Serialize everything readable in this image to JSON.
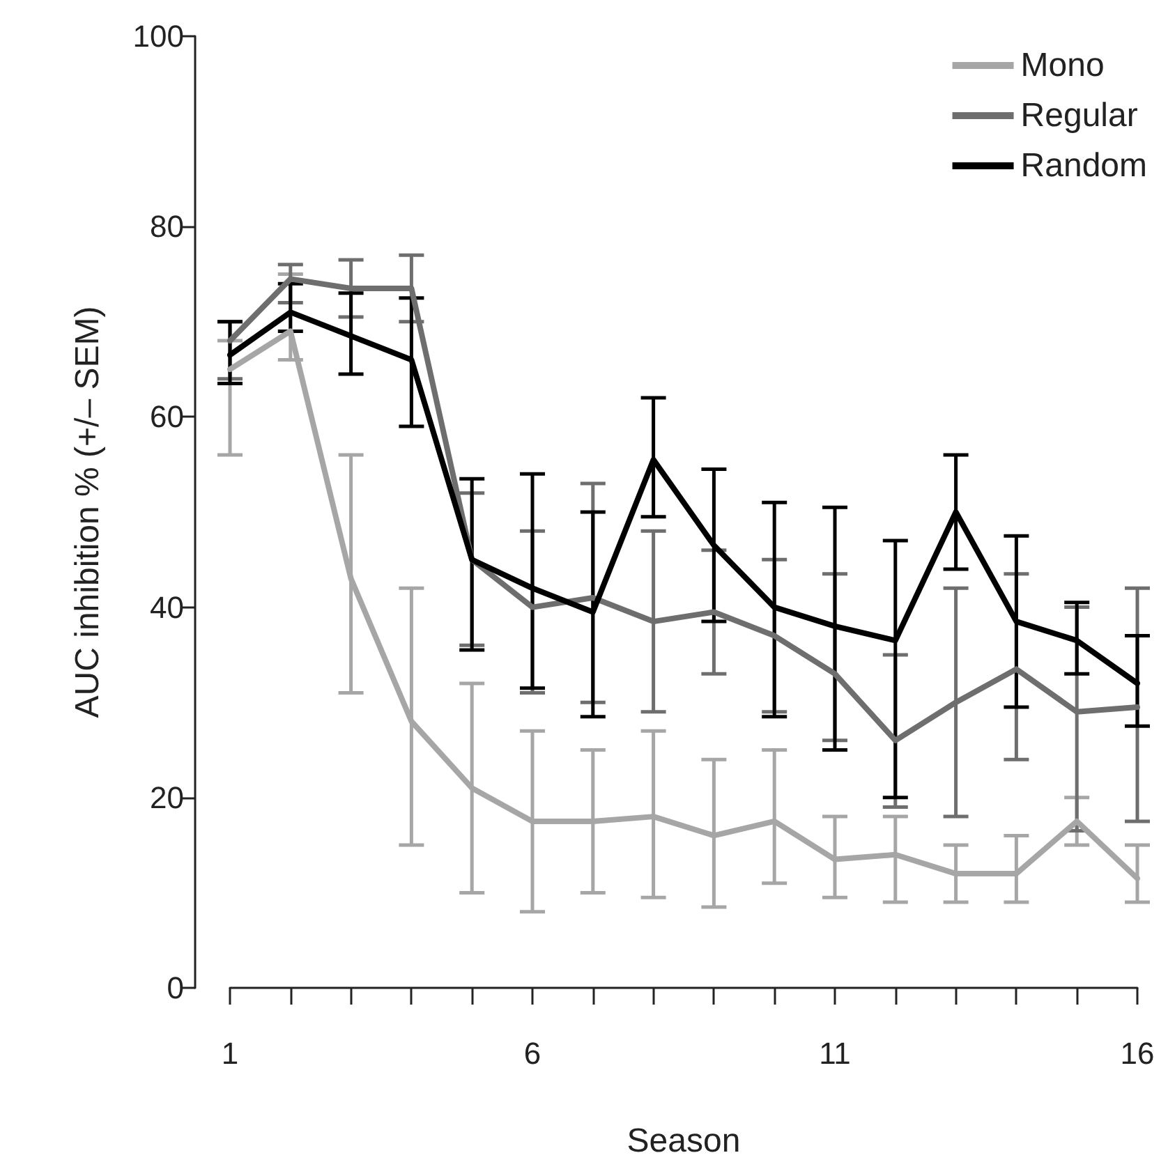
{
  "chart_data": {
    "type": "line",
    "xlabel": "Season",
    "ylabel": "AUC inhibition % (+/– SEM)",
    "x": [
      1,
      2,
      3,
      4,
      5,
      6,
      7,
      8,
      9,
      10,
      11,
      12,
      13,
      14,
      15,
      16
    ],
    "series": [
      {
        "name": "Mono",
        "color": "#a6a6a6",
        "values": [
          65,
          69,
          43,
          28,
          21,
          17.5,
          17.5,
          18,
          16,
          17.5,
          13.5,
          14,
          12,
          12,
          17.5,
          11.5
        ],
        "errors": [
          [
            56,
            68
          ],
          [
            66,
            75
          ],
          [
            31,
            56
          ],
          [
            15,
            42
          ],
          [
            10,
            32
          ],
          [
            8,
            27
          ],
          [
            10,
            25
          ],
          [
            9.5,
            27
          ],
          [
            8.5,
            24
          ],
          [
            11,
            25
          ],
          [
            9.5,
            18
          ],
          [
            9,
            18
          ],
          [
            9,
            15
          ],
          [
            9,
            16
          ],
          [
            15,
            20
          ],
          [
            9,
            15
          ]
        ]
      },
      {
        "name": "Regular",
        "color": "#6e6e6e",
        "values": [
          68,
          74.5,
          73.5,
          73.5,
          45,
          40,
          41,
          38.5,
          39.5,
          37,
          33,
          26,
          30,
          33.5,
          29,
          29.5
        ],
        "errors": [
          [
            64,
            70
          ],
          [
            72,
            76
          ],
          [
            70.5,
            76.5
          ],
          [
            70,
            77
          ],
          [
            36,
            52
          ],
          [
            31,
            48
          ],
          [
            30,
            53
          ],
          [
            29,
            48
          ],
          [
            33,
            46
          ],
          [
            29,
            45
          ],
          [
            26,
            43.5
          ],
          [
            19,
            35
          ],
          [
            18,
            42
          ],
          [
            24,
            43.5
          ],
          [
            16.5,
            40
          ],
          [
            17.5,
            42
          ]
        ]
      },
      {
        "name": "Random",
        "color": "#000000",
        "values": [
          66.5,
          71,
          68.5,
          66,
          45,
          42,
          39.5,
          55.5,
          46.5,
          40,
          38,
          36.5,
          50,
          38.5,
          36.5,
          32
        ],
        "errors": [
          [
            63.5,
            70
          ],
          [
            69,
            74
          ],
          [
            64.5,
            73
          ],
          [
            59,
            72.5
          ],
          [
            35.5,
            53.5
          ],
          [
            31.5,
            54
          ],
          [
            28.5,
            50
          ],
          [
            49.5,
            62
          ],
          [
            38.5,
            54.5
          ],
          [
            28.5,
            51
          ],
          [
            25,
            50.5
          ],
          [
            20,
            47
          ],
          [
            44,
            56
          ],
          [
            29.5,
            47.5
          ],
          [
            33,
            40.5
          ],
          [
            27.5,
            37
          ]
        ]
      }
    ],
    "xlim": [
      1,
      16
    ],
    "xticks": [
      1,
      {
        "value": 2,
        "label": null
      },
      {
        "value": 3,
        "label": null
      },
      {
        "value": 4,
        "label": null
      },
      {
        "value": 5,
        "label": null
      },
      6,
      {
        "value": 7,
        "label": null
      },
      {
        "value": 8,
        "label": null
      },
      {
        "value": 9,
        "label": null
      },
      {
        "value": 10,
        "label": null
      },
      11,
      {
        "value": 12,
        "label": null
      },
      {
        "value": 13,
        "label": null
      },
      {
        "value": 14,
        "label": null
      },
      {
        "value": 15,
        "label": null
      },
      16
    ],
    "ylim": [
      0,
      100
    ],
    "yticks": [
      0,
      20,
      40,
      60,
      80,
      100
    ],
    "grid": false,
    "legend": "top right",
    "marker": "none",
    "line_style": "solid"
  }
}
